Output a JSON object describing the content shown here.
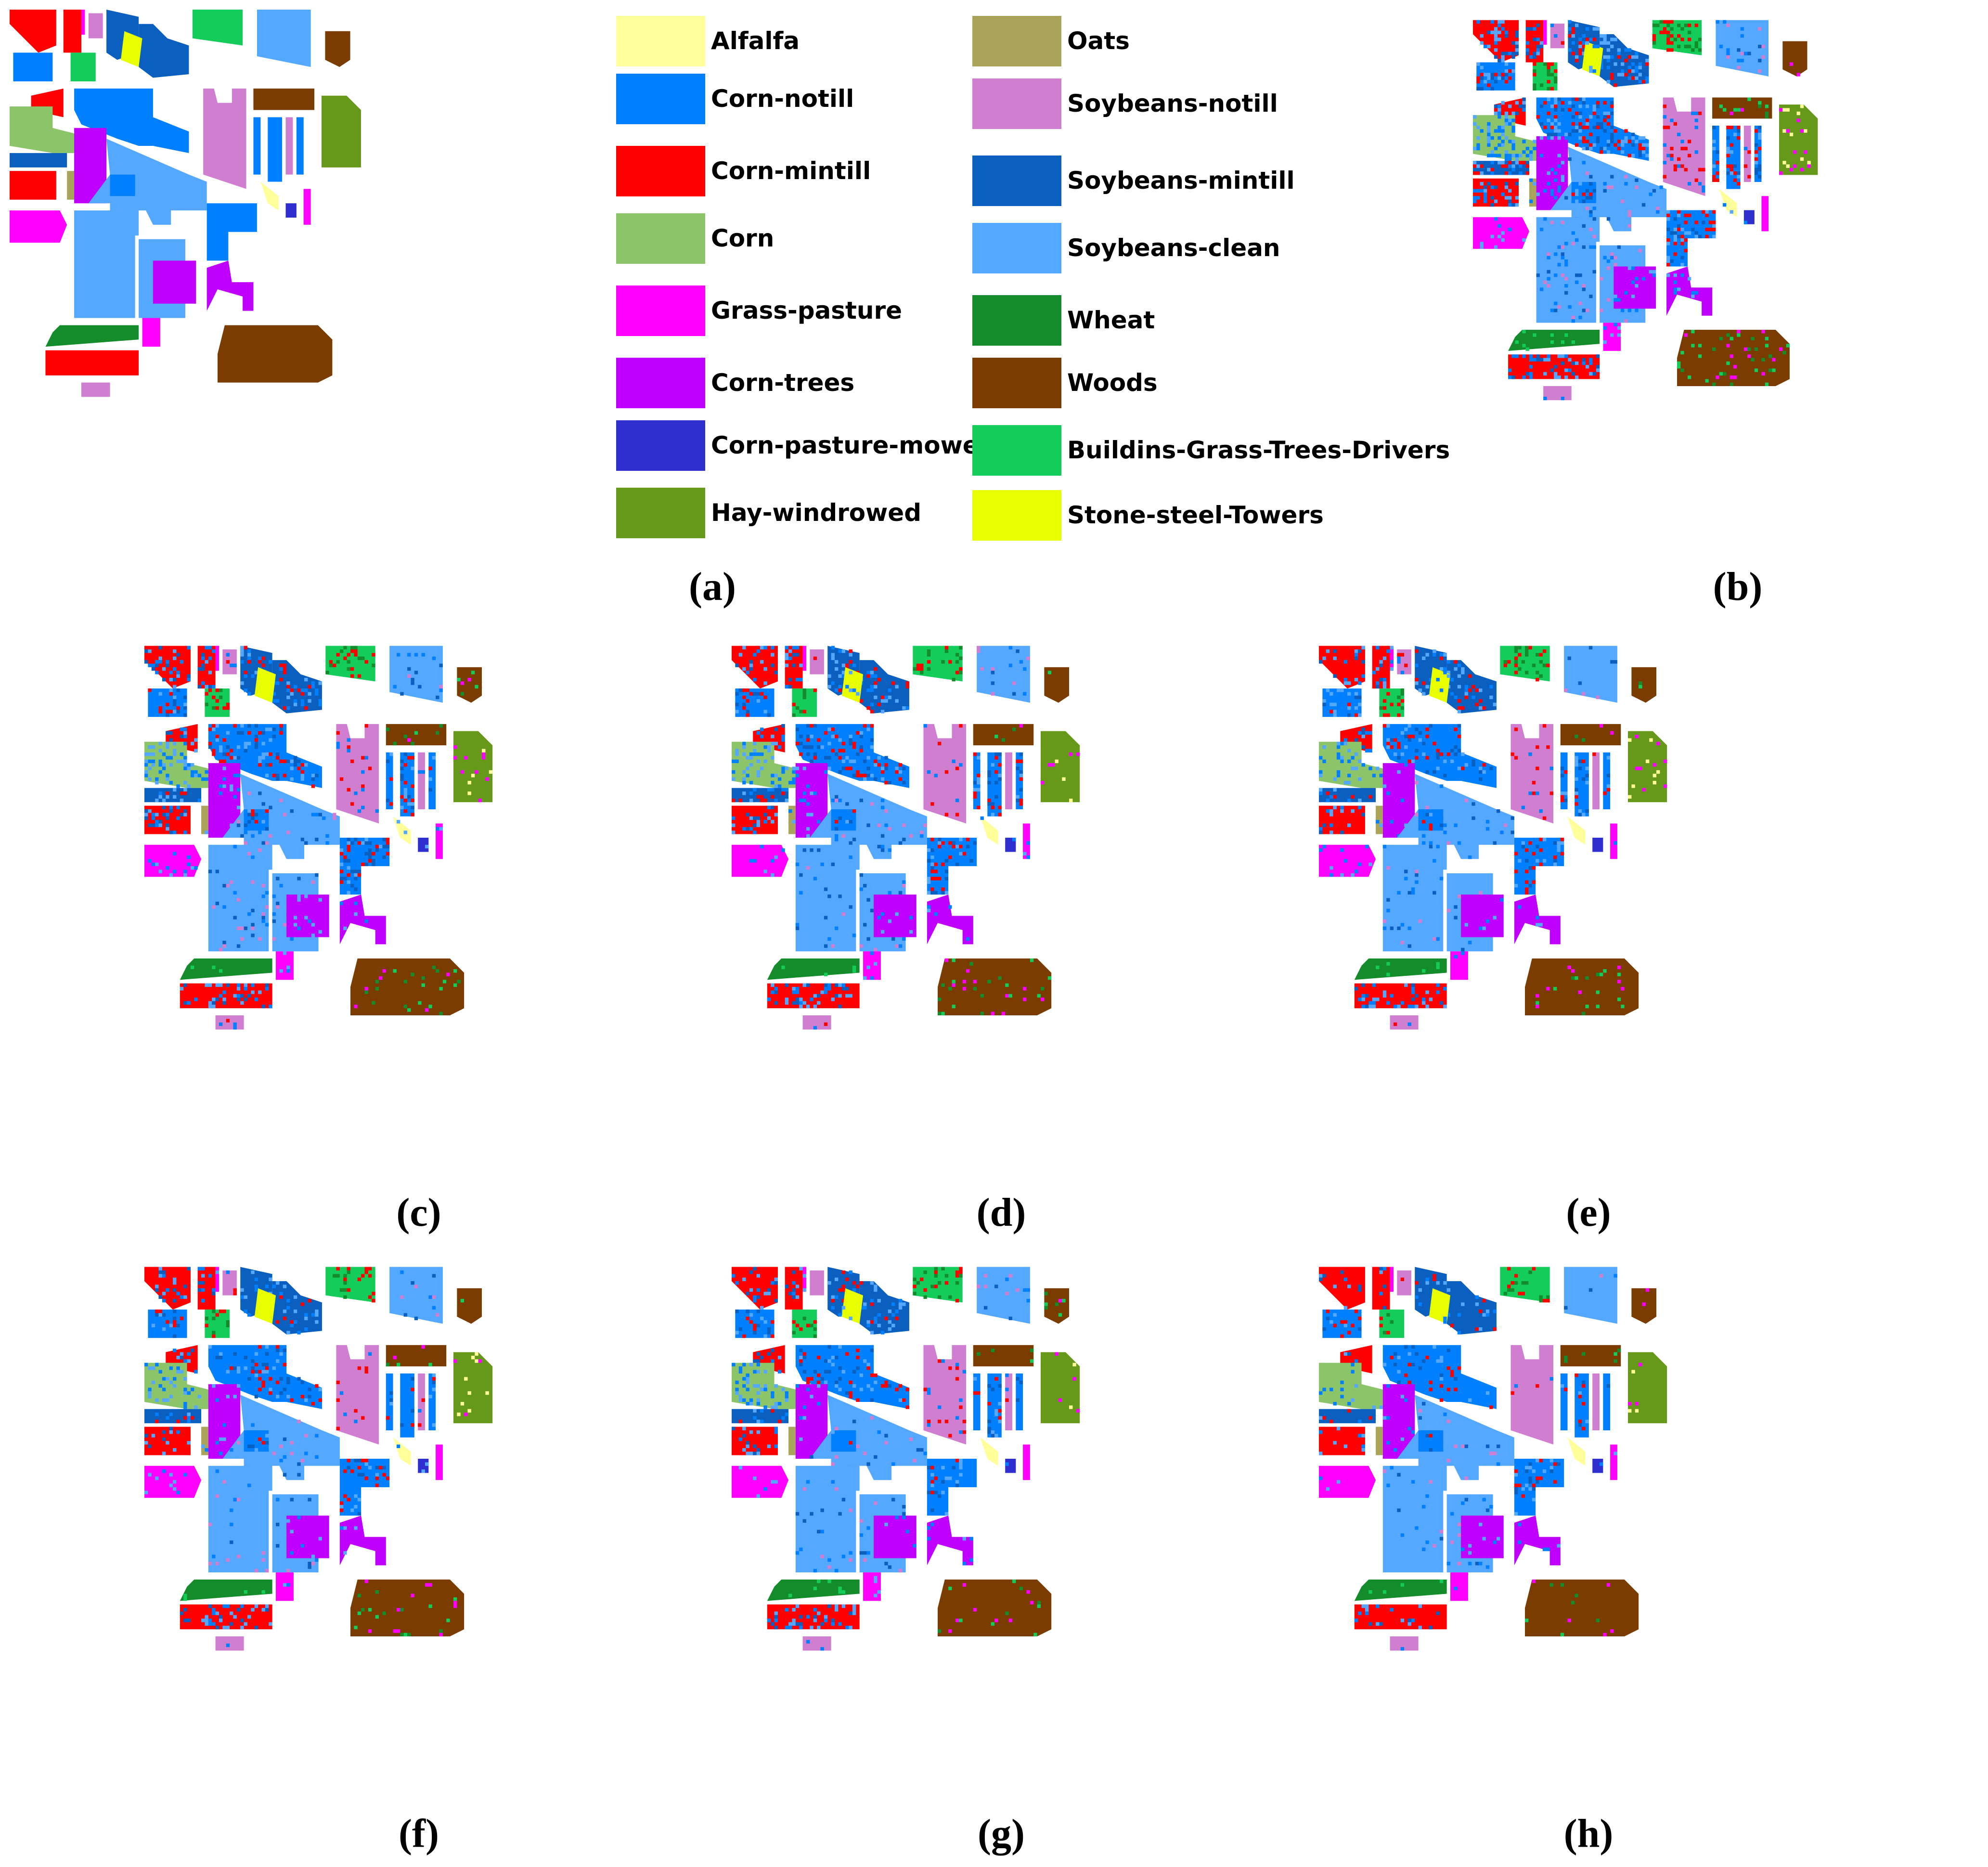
{
  "legend": {
    "classes": [
      {
        "name": "Alfalfa",
        "color": "#ffff99"
      },
      {
        "name": "Corn-notill",
        "color": "#0080ff"
      },
      {
        "name": "Corn-mintill",
        "color": "#ff0000"
      },
      {
        "name": "Corn",
        "color": "#8cc46a"
      },
      {
        "name": "Grass-pasture",
        "color": "#ff00ff"
      },
      {
        "name": "Corn-trees",
        "color": "#c000ff"
      },
      {
        "name": "Corn-pasture-mowed",
        "color": "#2f2fd0"
      },
      {
        "name": "Hay-windrowed",
        "color": "#66991a"
      },
      {
        "name": "Oats",
        "color": "#aaa45a"
      },
      {
        "name": "Soybeans-notill",
        "color": "#d07fd0"
      },
      {
        "name": "Soybeans-mintill",
        "color": "#0a5fbf"
      },
      {
        "name": "Soybeans-clean",
        "color": "#55a8ff"
      },
      {
        "name": "Wheat",
        "color": "#148c2c"
      },
      {
        "name": "Woods",
        "color": "#7a3c00"
      },
      {
        "name": "Buildins-Grass-Trees-Drivers",
        "color": "#13cc5a"
      },
      {
        "name": "Stone-steel-Towers",
        "color": "#e8ff00"
      }
    ]
  },
  "panels": [
    {
      "id": "a",
      "caption": "(a)",
      "noise": 0
    },
    {
      "id": "b",
      "caption": "(b)",
      "noise": 0.22
    },
    {
      "id": "c",
      "caption": "(c)",
      "noise": 0.16
    },
    {
      "id": "d",
      "caption": "(d)",
      "noise": 0.15
    },
    {
      "id": "e",
      "caption": "(e)",
      "noise": 0.13
    },
    {
      "id": "f",
      "caption": "(f)",
      "noise": 0.11
    },
    {
      "id": "g",
      "caption": "(g)",
      "noise": 0.12
    },
    {
      "id": "h",
      "caption": "(h)",
      "noise": 0.07
    }
  ]
}
